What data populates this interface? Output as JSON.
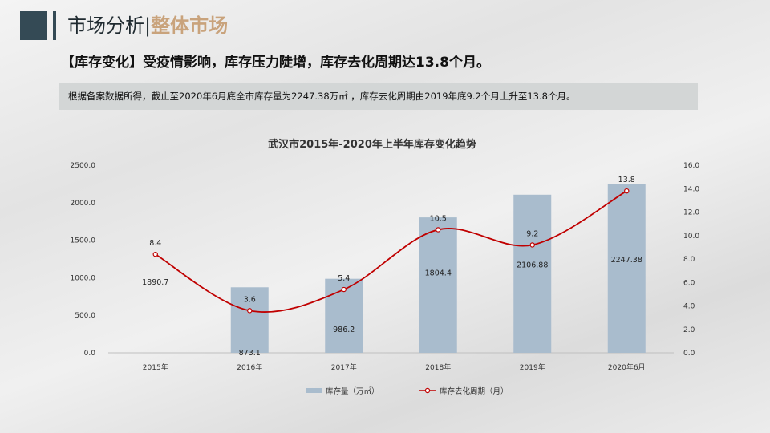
{
  "header": {
    "title_main": "市场分析",
    "title_sep": "|",
    "title_highlight": "整体市场"
  },
  "headline": "【库存变化】受疫情影响，库存压力陡增，库存去化周期达13.8个月。",
  "note": "根据备案数据所得，截止至2020年6月底全市库存量为2247.38万㎡ ，库存去化周期由2019年底9.2个月上升至13.8个月。",
  "colors": {
    "bar": "#a9bccd",
    "line": "#c00000",
    "accent": "#344a55",
    "highlight": "#c9a37c"
  },
  "chart_data": {
    "type": "bar",
    "title": "武汉市2015年-2020年上半年库存变化趋势",
    "categories": [
      "2015年",
      "2016年",
      "2017年",
      "2018年",
      "2019年",
      "2020年6月"
    ],
    "series": [
      {
        "name": "库存量（万㎡）",
        "type": "bar",
        "axis": "left",
        "values": [
          1890.7,
          873.1,
          986.2,
          1804.4,
          2106.88,
          2247.38
        ],
        "labels": [
          "1890.7",
          "873.1",
          "986.2",
          "1804.4",
          "2106.88",
          "2247.38"
        ]
      },
      {
        "name": "库存去化周期（月）",
        "type": "line",
        "axis": "right",
        "values": [
          8.4,
          3.6,
          5.4,
          10.5,
          9.2,
          13.8
        ],
        "labels": [
          "8.4",
          "3.6",
          "5.4",
          "10.5",
          "9.2",
          "13.8"
        ]
      }
    ],
    "y_left": {
      "range": [
        0,
        2500
      ],
      "ticks": [
        "0.0",
        "500.0",
        "1000.0",
        "1500.0",
        "2000.0",
        "2500.0"
      ]
    },
    "y_right": {
      "range": [
        0,
        16
      ],
      "ticks": [
        "0.0",
        "2.0",
        "4.0",
        "6.0",
        "8.0",
        "10.0",
        "12.0",
        "14.0",
        "16.0"
      ]
    },
    "grid": false,
    "legend_position": "bottom-center"
  }
}
